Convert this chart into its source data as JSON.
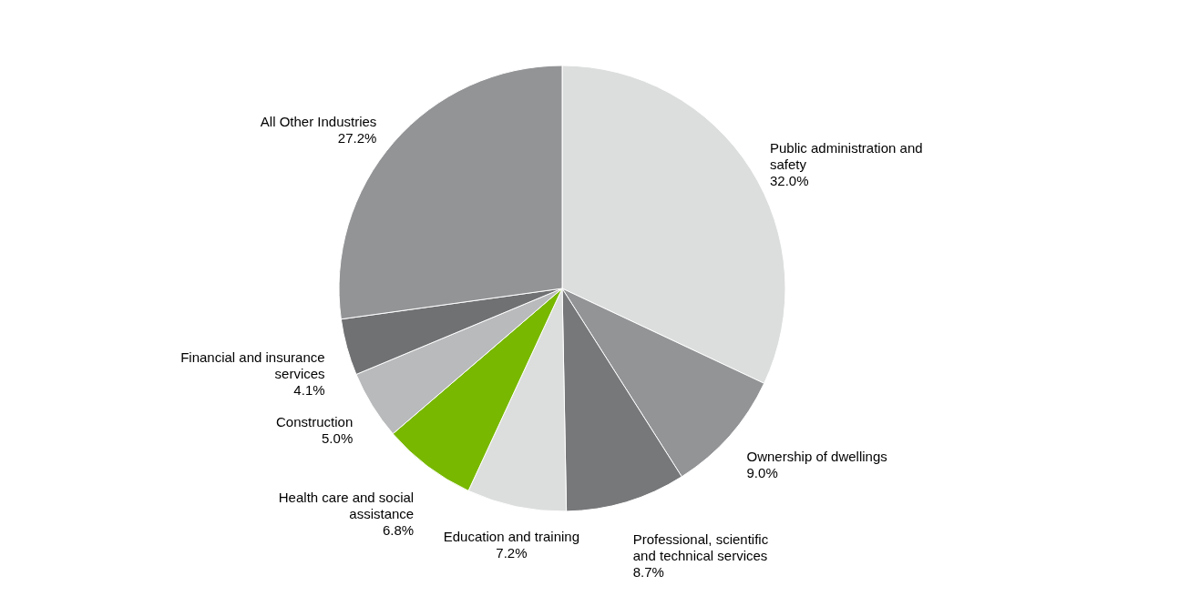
{
  "chart_data": {
    "type": "pie",
    "categories": [
      "Public administration and safety",
      "Ownership of dwellings",
      "Professional, scientific and technical services",
      "Education and training",
      "Health care and social assistance",
      "Construction",
      "Financial and insurance services",
      "All Other Industries"
    ],
    "values": [
      32.0,
      9.0,
      8.7,
      7.2,
      6.8,
      5.0,
      4.1,
      27.2
    ],
    "value_labels": [
      "32.0%",
      "9.0%",
      "8.7%",
      "7.2%",
      "6.8%",
      "5.0%",
      "4.1%",
      "27.2%"
    ],
    "colors": [
      "#dcdddd",
      "#939496",
      "#77787a",
      "#dcdddd",
      "#78b800",
      "#b9babb",
      "#707173",
      "#939496"
    ]
  }
}
